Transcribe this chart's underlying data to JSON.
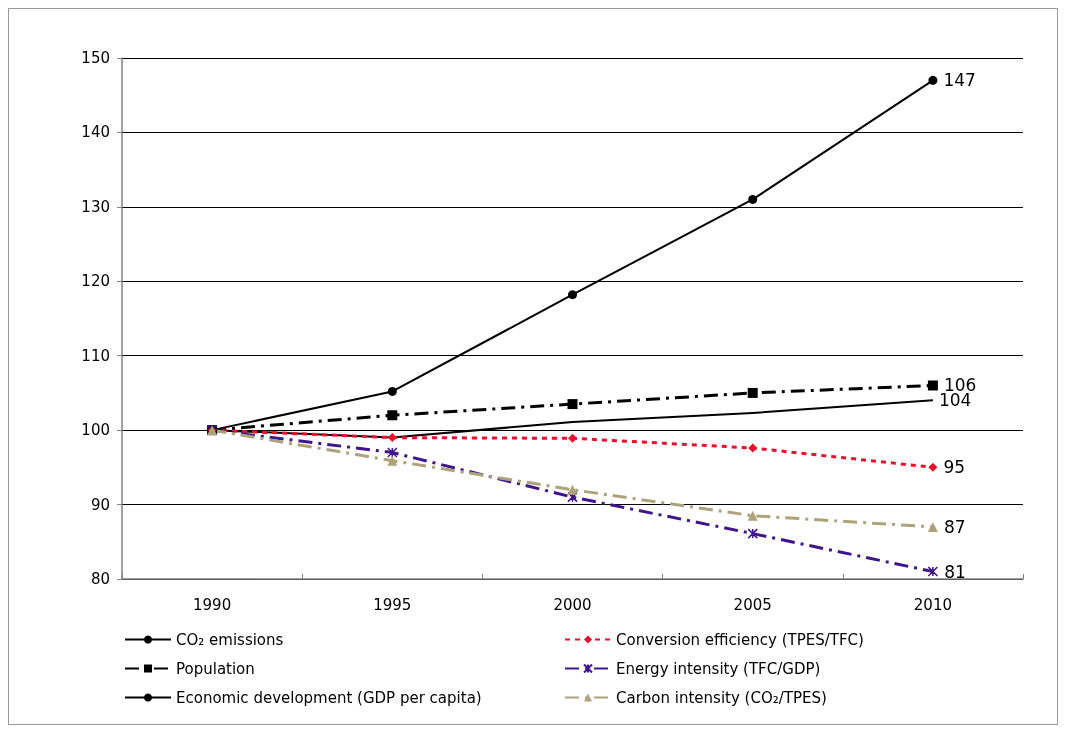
{
  "chart_data": {
    "type": "line",
    "categories": [
      "1990",
      "1995",
      "2000",
      "2005",
      "2010"
    ],
    "series": [
      {
        "name": "CO₂ emissions",
        "color": "#000000",
        "marker": "none",
        "line_style": "solid",
        "values": [
          100,
          99,
          101.1,
          102.3,
          104
        ],
        "value_labels": [
          null,
          null,
          null,
          null,
          "104"
        ]
      },
      {
        "name": "Population",
        "color": "#000000",
        "marker": "square",
        "line_style": "dashed",
        "values": [
          100,
          102,
          103.5,
          105,
          106
        ],
        "value_labels": [
          null,
          null,
          null,
          null,
          "106"
        ]
      },
      {
        "name": "Economic development (GDP per capita)",
        "color": "#000000",
        "marker": "circle",
        "line_style": "solid",
        "values": [
          100,
          105.2,
          118.2,
          131,
          147
        ],
        "value_labels": [
          null,
          null,
          null,
          null,
          "147"
        ]
      },
      {
        "name": "Conversion efficiency (TPES/TFC)",
        "color": "#e8102a",
        "marker": "diamond",
        "line_style": "dotted",
        "values": [
          100,
          99,
          98.9,
          97.6,
          95
        ],
        "value_labels": [
          null,
          null,
          null,
          null,
          "95"
        ]
      },
      {
        "name": "Energy intensity (TFC/GDP)",
        "color": "#3f148c",
        "marker": "cross",
        "line_style": "dashed",
        "values": [
          100,
          97,
          91,
          86.1,
          81
        ],
        "value_labels": [
          null,
          null,
          null,
          null,
          "81"
        ]
      },
      {
        "name": "Carbon intensity (CO₂/TPES)",
        "color": "#aea27a",
        "marker": "triangle",
        "line_style": "dashed",
        "values": [
          100,
          95.9,
          92,
          88.5,
          87
        ],
        "value_labels": [
          null,
          null,
          null,
          null,
          "87"
        ]
      }
    ],
    "ylim": [
      80,
      150
    ],
    "yticks": [
      80,
      90,
      100,
      110,
      120,
      130,
      140,
      150
    ],
    "grid": "y",
    "legend": "bottom"
  }
}
